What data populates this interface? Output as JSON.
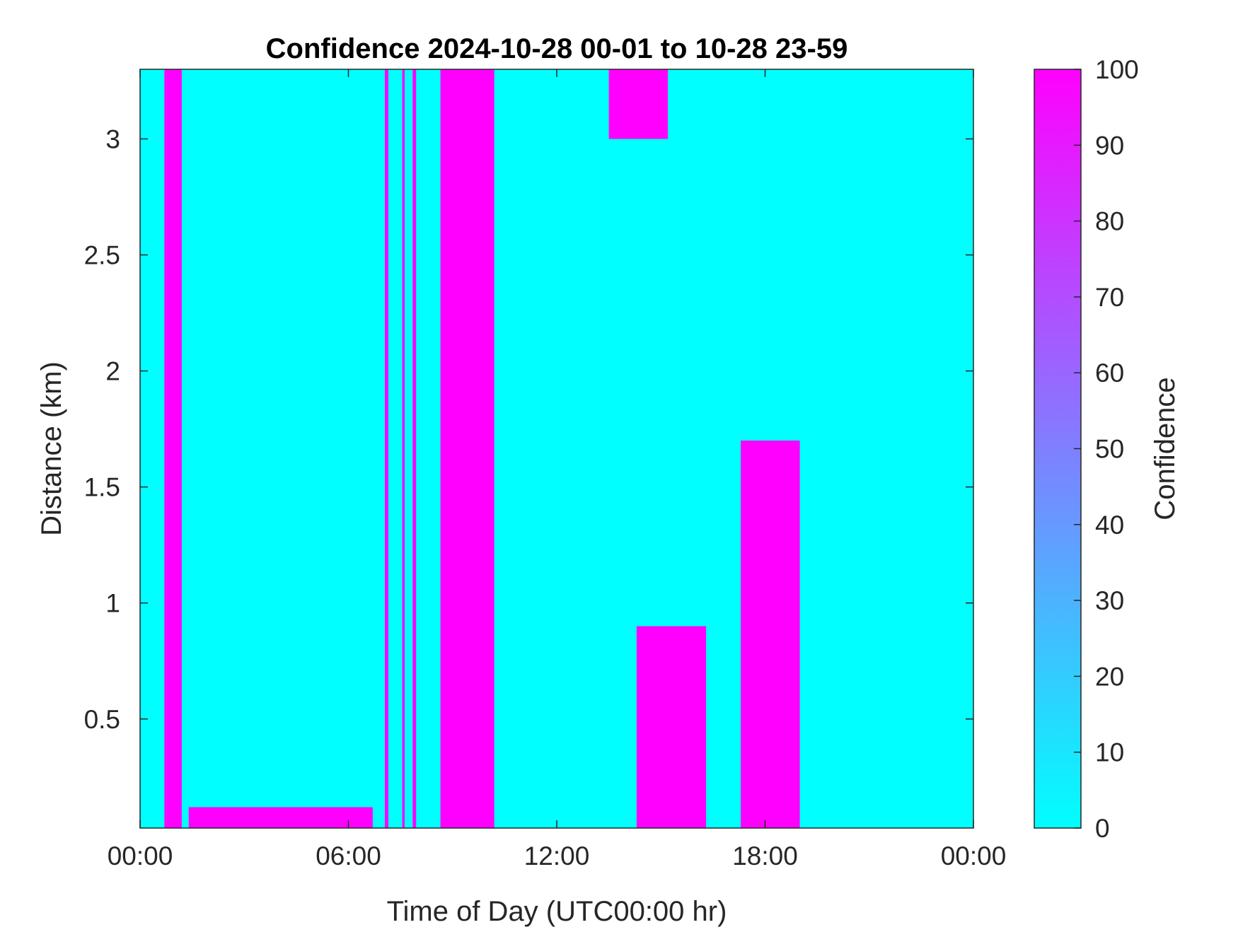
{
  "chart_data": {
    "type": "heatmap",
    "title": "Confidence 2024-10-28 00-01 to 10-28 23-59",
    "xlabel": "Time of Day (UTC00:00 hr)",
    "ylabel": "Distance (km)",
    "xlim_hours": [
      0,
      24
    ],
    "ylim_km": [
      0.03,
      3.3
    ],
    "x_ticks": [
      {
        "value": 0,
        "label": "00:00"
      },
      {
        "value": 6,
        "label": "06:00"
      },
      {
        "value": 12,
        "label": "12:00"
      },
      {
        "value": 18,
        "label": "18:00"
      },
      {
        "value": 24,
        "label": "00:00"
      }
    ],
    "y_ticks": [
      {
        "value": 0.5,
        "label": "0.5"
      },
      {
        "value": 1,
        "label": "1"
      },
      {
        "value": 1.5,
        "label": "1.5"
      },
      {
        "value": 2,
        "label": "2"
      },
      {
        "value": 2.5,
        "label": "2.5"
      },
      {
        "value": 3,
        "label": "3"
      }
    ],
    "colorbar": {
      "label": "Confidence",
      "range": [
        0,
        100
      ],
      "ticks": [
        0,
        10,
        20,
        30,
        40,
        50,
        60,
        70,
        80,
        90,
        100
      ],
      "low_color": "#00FFFF",
      "high_color": "#FF00FF"
    },
    "grid": false,
    "confidence_regions": [
      {
        "t0": 8.65,
        "t1": 10.2,
        "d0": 0.03,
        "d1": 3.3,
        "confidence": 100
      },
      {
        "t0": 7.05,
        "t1": 7.15,
        "d0": 0.03,
        "d1": 3.3,
        "confidence": 100
      },
      {
        "t0": 7.55,
        "t1": 7.62,
        "d0": 0.03,
        "d1": 3.3,
        "confidence": 100
      },
      {
        "t0": 7.85,
        "t1": 7.95,
        "d0": 0.03,
        "d1": 3.3,
        "confidence": 100
      },
      {
        "t0": 0.7,
        "t1": 1.2,
        "d0": 0.03,
        "d1": 3.3,
        "confidence": 100
      },
      {
        "t0": 13.5,
        "t1": 15.2,
        "d0": 3.0,
        "d1": 3.3,
        "confidence": 100
      },
      {
        "t0": 14.3,
        "t1": 16.3,
        "d0": 0.03,
        "d1": 0.9,
        "confidence": 100
      },
      {
        "t0": 17.3,
        "t1": 19.0,
        "d0": 0.03,
        "d1": 1.7,
        "confidence": 100
      },
      {
        "t0": 1.4,
        "t1": 6.7,
        "d0": 0.03,
        "d1": 0.12,
        "confidence": 100
      }
    ]
  }
}
